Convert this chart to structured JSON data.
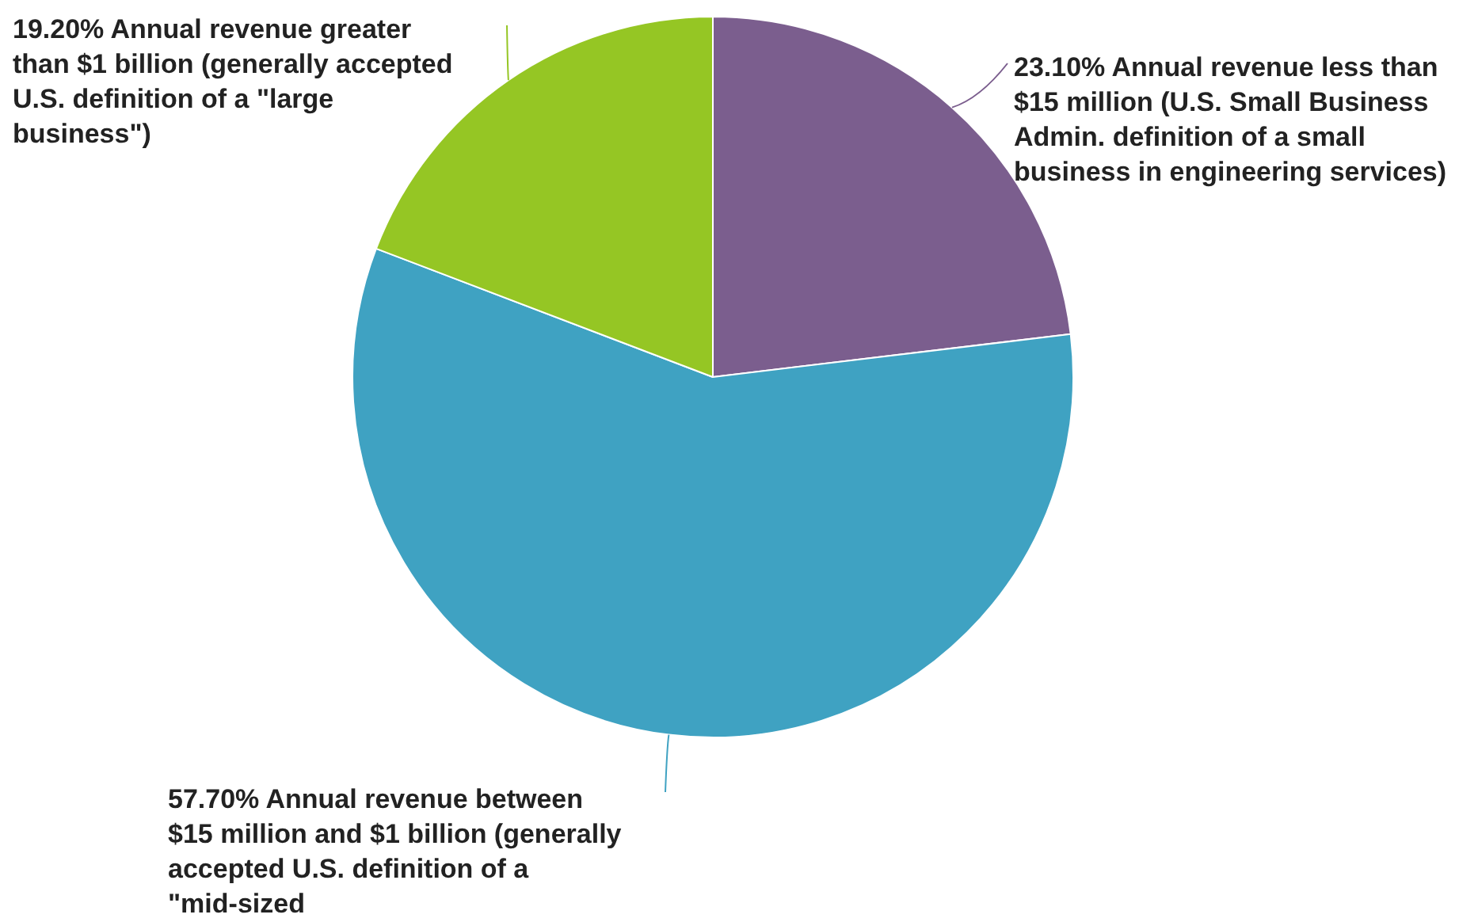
{
  "chart_data": {
    "type": "pie",
    "categories": [
      "Annual revenue less than $15 million (U.S. Small Business Admin. definition of a small business in engineering services)",
      "Annual revenue between $15 million and $1 billion (generally accepted U.S. definition of a \"mid-sized",
      "Annual revenue greater than $1 billion (generally accepted U.S. definition of a \"large business\")"
    ],
    "values": [
      23.1,
      57.7,
      19.2
    ],
    "value_labels": [
      "23.10%",
      "57.70%",
      "19.20%"
    ],
    "colors": [
      "#7b5e8e",
      "#3fa2c2",
      "#95c624"
    ],
    "legend": false
  }
}
